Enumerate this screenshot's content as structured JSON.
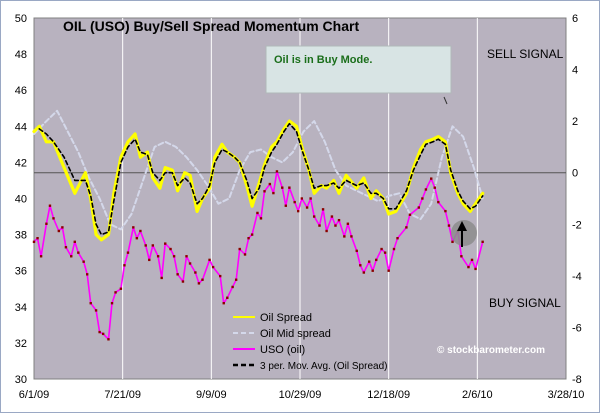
{
  "colors": {
    "plot_bg": "#b8b2bf",
    "page_bg": "#ffffff",
    "grid": "#ffffff",
    "oil_spread": "#ffff00",
    "mid_spread": "#d4d8ea",
    "uso": "#ff00ff",
    "uso_marker": "#8b0000",
    "mavg": "#000000",
    "note_box": "#d8e4e4",
    "note_text": "#1a6e1a",
    "arrow": "#000000"
  },
  "chart_data": {
    "type": "line",
    "title": "OIL (USO) Buy/Sell Spread Momentum Chart",
    "x_tick_labels": [
      "6/1/09",
      "7/21/09",
      "9/9/09",
      "10/29/09",
      "12/18/09",
      "2/6/10",
      "3/28/10"
    ],
    "x_range": [
      "2009-06-01",
      "2010-03-28"
    ],
    "y_left": {
      "min": 30,
      "max": 50,
      "ticks": [
        30,
        32,
        34,
        36,
        38,
        40,
        42,
        44,
        46,
        48,
        50
      ]
    },
    "y_right": {
      "min": -8,
      "max": 6,
      "ticks": [
        -8,
        -6,
        -4,
        -2,
        0,
        2,
        4,
        6
      ]
    },
    "grid": "vertical",
    "legend_position": "bottom-center",
    "zero_line_right": 0,
    "annotations": {
      "note": "Oil is in Buy Mode.",
      "sell_signal": "SELL SIGNAL",
      "buy_signal": "BUY SIGNAL",
      "watermark": "© stockbarometer.com"
    },
    "series": [
      {
        "name": "Oil Spread",
        "axis": "right",
        "x": [
          "2009-06-01",
          "2009-06-04",
          "2009-06-08",
          "2009-06-12",
          "2009-06-18",
          "2009-06-24",
          "2009-06-30",
          "2009-07-03",
          "2009-07-06",
          "2009-07-09",
          "2009-07-13",
          "2009-07-16",
          "2009-07-20",
          "2009-07-24",
          "2009-07-28",
          "2009-07-31",
          "2009-08-04",
          "2009-08-07",
          "2009-08-11",
          "2009-08-14",
          "2009-08-18",
          "2009-08-21",
          "2009-08-25",
          "2009-08-28",
          "2009-09-01",
          "2009-09-04",
          "2009-09-08",
          "2009-09-11",
          "2009-09-15",
          "2009-09-18",
          "2009-09-22",
          "2009-09-25",
          "2009-09-29",
          "2009-10-02",
          "2009-10-06",
          "2009-10-09",
          "2009-10-13",
          "2009-10-16",
          "2009-10-20",
          "2009-10-23",
          "2009-10-27",
          "2009-10-30",
          "2009-11-03",
          "2009-11-06",
          "2009-11-10",
          "2009-11-13",
          "2009-11-17",
          "2009-11-20",
          "2009-11-24",
          "2009-11-30",
          "2009-12-04",
          "2009-12-08",
          "2009-12-11",
          "2009-12-15",
          "2009-12-18",
          "2009-12-22",
          "2009-12-28",
          "2010-01-01",
          "2010-01-05",
          "2010-01-08",
          "2010-01-12",
          "2010-01-15",
          "2010-01-19",
          "2010-01-22",
          "2010-01-26",
          "2010-01-29",
          "2010-02-02",
          "2010-02-05",
          "2010-02-09"
        ],
        "values": [
          1.6,
          1.8,
          1.2,
          1.2,
          0.2,
          -0.8,
          0.0,
          -1.0,
          -2.4,
          -2.6,
          -2.4,
          -0.8,
          0.6,
          1.2,
          1.5,
          0.6,
          0.8,
          -0.2,
          -0.6,
          0.2,
          0.1,
          -0.7,
          0.0,
          -0.1,
          -1.5,
          -1.0,
          -0.6,
          0.6,
          1.1,
          0.8,
          0.6,
          0.4,
          -0.5,
          -1.3,
          -0.4,
          0.3,
          1.0,
          1.2,
          1.7,
          2.0,
          1.8,
          1.0,
          0.1,
          -0.8,
          -0.5,
          -0.6,
          -0.3,
          -0.8,
          -0.1,
          -0.6,
          -0.2,
          -1.0,
          -0.7,
          -1.0,
          -1.6,
          -1.5,
          -0.8,
          0.2,
          0.9,
          1.2,
          1.3,
          1.4,
          1.2,
          0.0,
          -0.8,
          -1.2,
          -1.5,
          -1.2,
          -0.8
        ]
      },
      {
        "name": "Oil Mid spread",
        "axis": "right",
        "x": [
          "2009-06-01",
          "2009-06-08",
          "2009-06-14",
          "2009-06-20",
          "2009-06-26",
          "2009-07-02",
          "2009-07-08",
          "2009-07-14",
          "2009-07-20",
          "2009-07-26",
          "2009-08-02",
          "2009-08-08",
          "2009-08-14",
          "2009-08-20",
          "2009-08-26",
          "2009-09-01",
          "2009-09-07",
          "2009-09-13",
          "2009-09-19",
          "2009-09-25",
          "2009-10-01",
          "2009-10-07",
          "2009-10-13",
          "2009-10-19",
          "2009-10-25",
          "2009-10-31",
          "2009-11-06",
          "2009-11-12",
          "2009-11-18",
          "2009-11-24",
          "2009-11-30",
          "2009-12-06",
          "2009-12-12",
          "2009-12-18",
          "2009-12-24",
          "2009-12-30",
          "2010-01-05",
          "2010-01-11",
          "2010-01-17",
          "2010-01-23",
          "2010-01-29",
          "2010-02-04",
          "2010-02-09"
        ],
        "values": [
          1.5,
          2.0,
          2.4,
          1.6,
          0.8,
          -0.2,
          -1.0,
          -2.0,
          -2.2,
          -1.6,
          -0.2,
          1.0,
          1.2,
          1.0,
          0.6,
          0.1,
          -0.5,
          -1.2,
          -1.0,
          0.1,
          0.8,
          0.9,
          0.6,
          0.4,
          0.8,
          1.6,
          2.0,
          1.2,
          0.1,
          -0.5,
          -0.7,
          -0.9,
          -1.1,
          -0.9,
          -0.8,
          -1.6,
          -1.8,
          -1.2,
          0.6,
          1.8,
          1.4,
          0.2,
          -1.0
        ]
      },
      {
        "name": "USO (oil)",
        "axis": "left",
        "x": [
          "2009-06-01",
          "2009-06-03",
          "2009-06-05",
          "2009-06-08",
          "2009-06-10",
          "2009-06-12",
          "2009-06-15",
          "2009-06-17",
          "2009-06-19",
          "2009-06-22",
          "2009-06-24",
          "2009-06-26",
          "2009-06-29",
          "2009-07-01",
          "2009-07-03",
          "2009-07-06",
          "2009-07-08",
          "2009-07-10",
          "2009-07-13",
          "2009-07-15",
          "2009-07-17",
          "2009-07-20",
          "2009-07-22",
          "2009-07-24",
          "2009-07-27",
          "2009-07-29",
          "2009-07-31",
          "2009-08-03",
          "2009-08-05",
          "2009-08-07",
          "2009-08-10",
          "2009-08-12",
          "2009-08-14",
          "2009-08-17",
          "2009-08-19",
          "2009-08-21",
          "2009-08-24",
          "2009-08-26",
          "2009-08-28",
          "2009-08-31",
          "2009-09-02",
          "2009-09-04",
          "2009-09-08",
          "2009-09-10",
          "2009-09-14",
          "2009-09-16",
          "2009-09-18",
          "2009-09-21",
          "2009-09-23",
          "2009-09-25",
          "2009-09-28",
          "2009-09-30",
          "2009-10-02",
          "2009-10-05",
          "2009-10-07",
          "2009-10-09",
          "2009-10-12",
          "2009-10-14",
          "2009-10-16",
          "2009-10-19",
          "2009-10-21",
          "2009-10-23",
          "2009-10-26",
          "2009-10-28",
          "2009-10-30",
          "2009-11-02",
          "2009-11-04",
          "2009-11-06",
          "2009-11-09",
          "2009-11-11",
          "2009-11-13",
          "2009-11-16",
          "2009-11-18",
          "2009-11-20",
          "2009-11-23",
          "2009-11-25",
          "2009-11-27",
          "2009-11-30",
          "2009-12-02",
          "2009-12-04",
          "2009-12-07",
          "2009-12-09",
          "2009-12-11",
          "2009-12-14",
          "2009-12-16",
          "2009-12-18",
          "2009-12-21",
          "2009-12-23",
          "2009-12-28",
          "2009-12-30",
          "2010-01-04",
          "2010-01-06",
          "2010-01-08",
          "2010-01-11",
          "2010-01-13",
          "2010-01-15",
          "2010-01-19",
          "2010-01-21",
          "2010-01-23",
          "2010-01-26",
          "2010-01-28",
          "2010-02-01",
          "2010-02-03",
          "2010-02-05",
          "2010-02-09"
        ],
        "values": [
          37.6,
          37.8,
          36.8,
          38.6,
          39.6,
          38.9,
          38.2,
          38.4,
          37.3,
          36.8,
          37.6,
          37.0,
          36.5,
          35.8,
          34.2,
          33.8,
          32.6,
          32.5,
          32.2,
          34.2,
          34.8,
          35.0,
          36.3,
          37.0,
          38.4,
          37.8,
          38.2,
          37.4,
          36.6,
          37.4,
          36.8,
          35.6,
          37.5,
          37.2,
          36.8,
          35.8,
          35.4,
          36.8,
          36.4,
          35.9,
          35.3,
          35.5,
          36.6,
          36.2,
          35.7,
          34.2,
          34.5,
          35.1,
          35.5,
          37.2,
          36.9,
          37.8,
          38.0,
          39.2,
          38.9,
          40.4,
          40.8,
          40.3,
          41.5,
          40.6,
          39.6,
          40.6,
          39.8,
          39.3,
          40.0,
          39.5,
          40.0,
          39.0,
          38.5,
          39.4,
          38.2,
          39.0,
          38.5,
          38.8,
          37.9,
          38.6,
          37.9,
          37.1,
          36.3,
          35.9,
          36.5,
          36.0,
          36.6,
          37.2,
          37.0,
          36.0,
          37.2,
          37.8,
          38.4,
          39.1,
          39.5,
          40.0,
          40.5,
          41.1,
          40.6,
          39.8,
          39.3,
          38.5,
          37.6,
          38.2,
          36.8,
          36.2,
          36.6,
          36.1,
          37.6
        ]
      },
      {
        "name": "3 per. Mov. Avg. (Oil Spread)",
        "axis": "right",
        "x": [
          "2009-06-04",
          "2009-06-08",
          "2009-06-12",
          "2009-06-18",
          "2009-06-24",
          "2009-06-30",
          "2009-07-03",
          "2009-07-06",
          "2009-07-09",
          "2009-07-13",
          "2009-07-16",
          "2009-07-20",
          "2009-07-24",
          "2009-07-28",
          "2009-07-31",
          "2009-08-04",
          "2009-08-07",
          "2009-08-11",
          "2009-08-14",
          "2009-08-18",
          "2009-08-21",
          "2009-08-25",
          "2009-08-28",
          "2009-09-01",
          "2009-09-04",
          "2009-09-08",
          "2009-09-11",
          "2009-09-15",
          "2009-09-18",
          "2009-09-22",
          "2009-09-25",
          "2009-09-29",
          "2009-10-02",
          "2009-10-06",
          "2009-10-09",
          "2009-10-13",
          "2009-10-16",
          "2009-10-20",
          "2009-10-23",
          "2009-10-27",
          "2009-10-30",
          "2009-11-03",
          "2009-11-06",
          "2009-11-10",
          "2009-11-13",
          "2009-11-17",
          "2009-11-20",
          "2009-11-24",
          "2009-11-30",
          "2009-12-04",
          "2009-12-08",
          "2009-12-11",
          "2009-12-15",
          "2009-12-18",
          "2009-12-22",
          "2009-12-28",
          "2010-01-01",
          "2010-01-05",
          "2010-01-08",
          "2010-01-12",
          "2010-01-15",
          "2010-01-19",
          "2010-01-22",
          "2010-01-26",
          "2010-01-29",
          "2010-02-02",
          "2010-02-05",
          "2010-02-09"
        ],
        "values": [
          1.7,
          1.5,
          1.2,
          0.6,
          -0.3,
          -0.3,
          -0.9,
          -2.0,
          -2.4,
          -2.3,
          -1.1,
          0.4,
          1.0,
          1.3,
          0.8,
          0.7,
          0.0,
          -0.3,
          0.0,
          0.0,
          -0.5,
          -0.2,
          -0.4,
          -1.2,
          -1.0,
          -0.5,
          0.4,
          0.9,
          0.8,
          0.6,
          0.4,
          -0.3,
          -1.0,
          -0.6,
          0.2,
          0.8,
          1.1,
          1.6,
          1.9,
          1.6,
          0.9,
          0.1,
          -0.6,
          -0.5,
          -0.5,
          -0.4,
          -0.6,
          -0.3,
          -0.5,
          -0.4,
          -0.8,
          -0.8,
          -1.0,
          -1.4,
          -1.4,
          -0.7,
          0.1,
          0.7,
          1.1,
          1.2,
          1.3,
          1.1,
          0.1,
          -0.7,
          -1.1,
          -1.4,
          -1.3,
          -0.9
        ]
      }
    ]
  }
}
